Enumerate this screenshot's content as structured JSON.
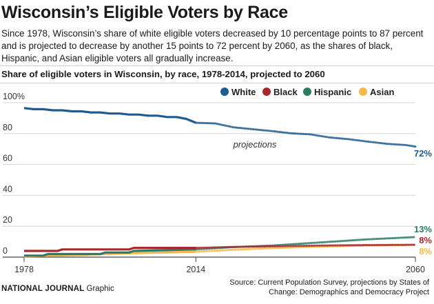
{
  "header": {
    "title": "Wisconsin’s Eligible Voters by Race",
    "description": "Since 1978, Wisconsin’s share of white eligible voters decreased by 10 percentage points to 87 percent and is projected to decrease by another 15 points to 72 percent by 2060, as the shares of black, Hispanic, and Asian eligible voters all gradually increase.",
    "subtitle": "Share of eligible voters in Wisconsin, by race, 1978-2014, projected to 2060"
  },
  "chart_data": {
    "type": "line",
    "title": "Share of eligible voters in Wisconsin, by race, 1978-2014, projected to 2060",
    "xlabel": "",
    "ylabel": "",
    "xlim": [
      1978,
      2060
    ],
    "ylim": [
      0,
      100
    ],
    "x_ticks": [
      1978,
      2014,
      2060
    ],
    "x_tick_labels": [
      "1978",
      "2014",
      "2060"
    ],
    "y_ticks": [
      0,
      20,
      40,
      60,
      80,
      100
    ],
    "y_tick_labels": [
      "0",
      "20",
      "40",
      "60",
      "80",
      "100%"
    ],
    "grid": "horizontal",
    "legend_position": "top-right",
    "projection_start": 2014,
    "projection_label": "projections",
    "series": [
      {
        "name": "White",
        "color": "#1f5b8e",
        "end_label": "72%",
        "historical": {
          "x": [
            1978,
            1980,
            1982,
            1984,
            1986,
            1988,
            1990,
            1992,
            1994,
            1996,
            1998,
            2000,
            2002,
            2004,
            2006,
            2008,
            2010,
            2012,
            2014
          ],
          "y": [
            96.5,
            95.8,
            95.8,
            95.1,
            95.1,
            94.4,
            94.4,
            93.7,
            93.7,
            93.0,
            93.0,
            92.3,
            92.3,
            91.6,
            91.6,
            90.7,
            90.7,
            89.5,
            87.0
          ]
        },
        "projected": {
          "x": [
            2014,
            2018,
            2022,
            2026,
            2030,
            2034,
            2038,
            2042,
            2046,
            2050,
            2054,
            2058,
            2060
          ],
          "y": [
            87.0,
            86.6,
            84.0,
            82.8,
            81.6,
            80.2,
            79.5,
            77.5,
            76.4,
            74.8,
            73.4,
            72.6,
            71.6
          ]
        }
      },
      {
        "name": "Black",
        "color": "#a52a2a",
        "end_label": "8%",
        "historical": {
          "x": [
            1978,
            1985,
            1986,
            2000,
            2001,
            2014
          ],
          "y": [
            4,
            4,
            5,
            5,
            6,
            6
          ]
        },
        "projected": {
          "x": [
            2014,
            2022,
            2030,
            2040,
            2050,
            2060
          ],
          "y": [
            6,
            6.6,
            7,
            7.5,
            7.8,
            8
          ]
        }
      },
      {
        "name": "Hispanic",
        "color": "#2e7a66",
        "end_label": "13%",
        "historical": {
          "x": [
            1978,
            1982,
            1983,
            1994,
            1995,
            2000,
            2001,
            2014
          ],
          "y": [
            1,
            1,
            2,
            2,
            3,
            3,
            4,
            5
          ]
        },
        "projected": {
          "x": [
            2014,
            2022,
            2030,
            2040,
            2050,
            2060
          ],
          "y": [
            5,
            6.5,
            7.5,
            9.5,
            11.5,
            13
          ]
        }
      },
      {
        "name": "Asian",
        "color": "#f5b84c",
        "end_label": "8%",
        "historical": {
          "x": [
            1978,
            1990,
            2000,
            2014
          ],
          "y": [
            0.5,
            1.5,
            2.5,
            3.5
          ]
        },
        "projected": {
          "x": [
            2014,
            2022,
            2030,
            2040,
            2050,
            2060
          ],
          "y": [
            3.5,
            4.8,
            5.8,
            6.8,
            7.5,
            8
          ]
        }
      }
    ]
  },
  "footer": {
    "brand": "NATIONAL JOURNAL",
    "graphic_label": "Graphic",
    "source": "Source: Current Population Survey, projections by States of Change: Demographics and Democracy Project"
  }
}
